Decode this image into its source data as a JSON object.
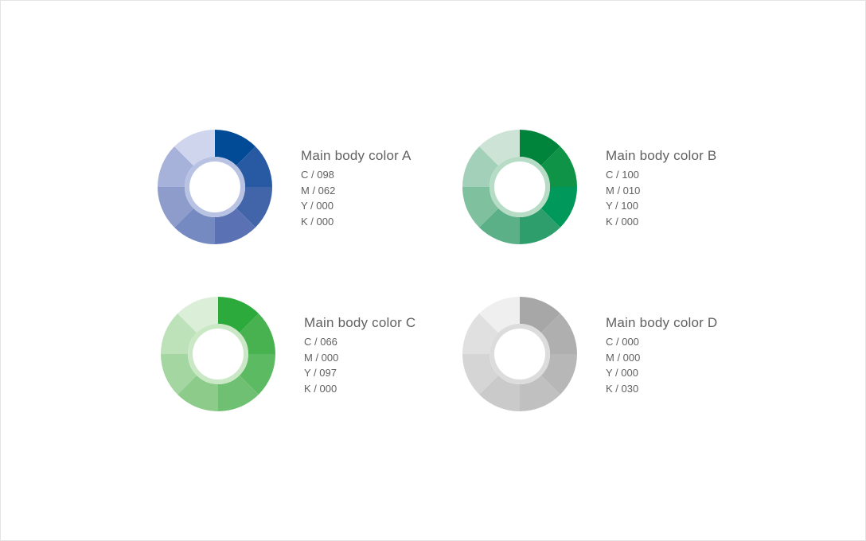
{
  "colors": [
    {
      "title": "Main body color A",
      "values": [
        "C / 098",
        "M / 062",
        "Y / 000",
        "K / 000"
      ],
      "base": "#004a96",
      "segments": [
        "#004a96",
        "#275aa2",
        "#4165a8",
        "#5a72b3",
        "#748ac0",
        "#8e9ccb",
        "#a7b2da",
        "#cfd5ec"
      ],
      "inner_ring": "#b8c2e2"
    },
    {
      "title": "Main body color B",
      "values": [
        "C / 100",
        "M / 010",
        "Y / 100",
        "K / 000"
      ],
      "base": "#00843c",
      "segments": [
        "#00843c",
        "#0f9447",
        "#00995b",
        "#2e9e6c",
        "#5cb088",
        "#7fc09f",
        "#a3d0b8",
        "#cce3d6"
      ],
      "inner_ring": "#b7dcc6"
    },
    {
      "title": "Main body color C",
      "values": [
        "C / 066",
        "M / 000",
        "Y / 097",
        "K / 000"
      ],
      "base": "#2caa3c",
      "segments": [
        "#2caa3c",
        "#48b250",
        "#5cba62",
        "#70c074",
        "#8ccb8a",
        "#a3d6a1",
        "#bde2ba",
        "#dbefd8"
      ],
      "inner_ring": "#cbe8c6"
    },
    {
      "title": "Main body color D",
      "values": [
        "C / 000",
        "M / 000",
        "Y / 000",
        "K / 030"
      ],
      "base": "#a7a7a7",
      "segments": [
        "#a7a7a7",
        "#afafaf",
        "#b7b7b7",
        "#c0c0c0",
        "#cacaca",
        "#d5d5d5",
        "#e0e0e0",
        "#efefef"
      ],
      "inner_ring": "#dcdcdc"
    }
  ]
}
